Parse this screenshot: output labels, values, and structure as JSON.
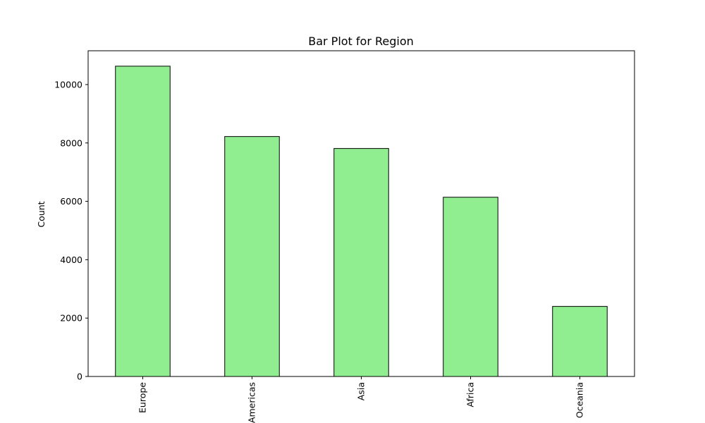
{
  "chart_data": {
    "type": "bar",
    "title": "Bar Plot for Region",
    "xlabel": "",
    "ylabel": "Count",
    "categories": [
      "Europe",
      "Americas",
      "Asia",
      "Africa",
      "Oceania"
    ],
    "values": [
      10630,
      8220,
      7810,
      6140,
      2400
    ],
    "ylim": [
      0,
      11158
    ],
    "yticks": [
      0,
      2000,
      4000,
      6000,
      8000,
      10000
    ],
    "grid": false,
    "legend": "none",
    "bar_color": "#90ee90",
    "edge_color": "#000000"
  }
}
